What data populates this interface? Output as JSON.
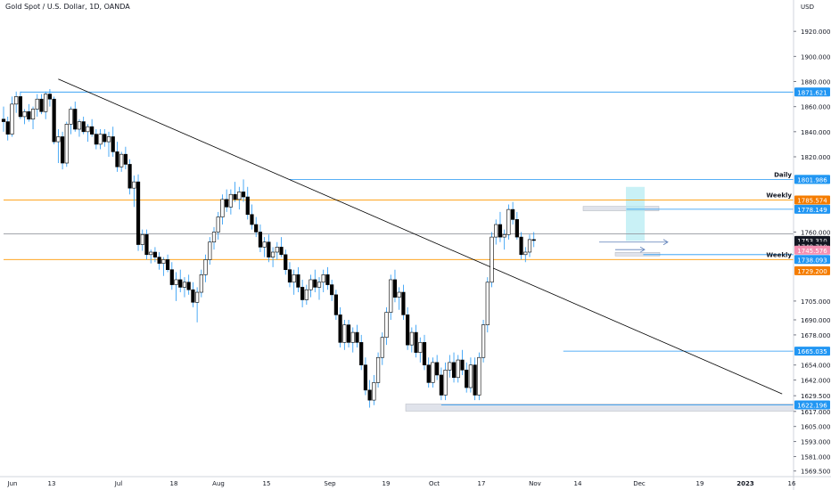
{
  "header": {
    "title": "Gold Spot / U.S. Dollar, 1D, OANDA"
  },
  "colors": {
    "candle_up": "#ffffff",
    "candle_down": "#000000",
    "wick": "#2196f3",
    "blue_level": "#2196f3",
    "orange_level": "#ff9800",
    "trendline": "#000000",
    "grid": "#d1d4dc",
    "price_tag_dark": "#131722",
    "price_tag_teal": "#26c6da",
    "price_tag_orange": "#f57c00",
    "price_tag_pink": "#f48fb1",
    "zone_fill": "#b2ebf2"
  },
  "chart_data": {
    "type": "candlestick",
    "currency": "USD",
    "ylim": [
      1565,
      1945
    ],
    "y_ticks": [
      {
        "value": 1920,
        "label": "1920.000"
      },
      {
        "value": 1900,
        "label": "1900.000"
      },
      {
        "value": 1880,
        "label": "1880.000"
      },
      {
        "value": 1860,
        "label": "1860.000"
      },
      {
        "value": 1840,
        "label": "1840.000"
      },
      {
        "value": 1820,
        "label": "1820.000"
      },
      {
        "value": 1760,
        "label": "1760.000"
      },
      {
        "value": 1705,
        "label": "1705.000"
      },
      {
        "value": 1690,
        "label": "1690.000"
      },
      {
        "value": 1678,
        "label": "1678.000"
      },
      {
        "value": 1654,
        "label": "1654.000"
      },
      {
        "value": 1642,
        "label": "1642.000"
      },
      {
        "value": 1629.5,
        "label": "1629.500"
      },
      {
        "value": 1617,
        "label": "1617.000"
      },
      {
        "value": 1605,
        "label": "1605.000"
      },
      {
        "value": 1593,
        "label": "1593.000"
      },
      {
        "value": 1581,
        "label": "1581.000"
      },
      {
        "value": 1569.5,
        "label": "1569.500"
      }
    ],
    "x_ticks": [
      "Jun",
      "13",
      "Jul",
      "18",
      "Aug",
      "15",
      "Sep",
      "19",
      "Oct",
      "17",
      "Nov",
      "14",
      "Dec",
      "19",
      "2023",
      "16"
    ],
    "bold_x_ticks": [
      "2023"
    ],
    "price_tags": [
      {
        "value": 1871.621,
        "label": "1871.621",
        "style": "blue"
      },
      {
        "value": 1802.001,
        "label": "1802.001",
        "style": "teal"
      },
      {
        "value": 1801.986,
        "label": "1801.986",
        "style": "blue"
      },
      {
        "value": 1785.574,
        "label": "1785.574",
        "style": "orange"
      },
      {
        "value": 1778.149,
        "label": "1778.149",
        "style": "blue"
      },
      {
        "value": 1753.31,
        "label": "1753.310",
        "style": "dark"
      },
      {
        "value": 1748.0,
        "label": "21:31:46",
        "style": "dark_light"
      },
      {
        "value": 1748.71,
        "label": "1748.710",
        "style": "dark"
      },
      {
        "value": 1745.576,
        "label": "1745.576",
        "style": "pink"
      },
      {
        "value": 1738.093,
        "label": "1738.093",
        "style": "blue"
      },
      {
        "value": 1729.2,
        "label": "1729.200",
        "style": "orange"
      },
      {
        "value": 1665.035,
        "label": "1665.035",
        "style": "blue"
      },
      {
        "value": 1622.196,
        "label": "1622.196",
        "style": "blue"
      }
    ],
    "level_labels": [
      {
        "value": 1802,
        "text": "Daily"
      },
      {
        "value": 1785.574,
        "text": "Weekly"
      },
      {
        "value": 1738.093,
        "text": "Weekly"
      }
    ],
    "levels": [
      {
        "value": 1871.621,
        "color": "blue",
        "from_bar": 4
      },
      {
        "value": 1801.986,
        "color": "blue",
        "from_bar": 68
      },
      {
        "value": 1785.574,
        "color": "orange",
        "from_bar": 0
      },
      {
        "value": 1778.149,
        "color": "blue",
        "from_bar": 148
      },
      {
        "value": 1758.5,
        "color": "gray",
        "from_bar": 0
      },
      {
        "value": 1738.093,
        "color": "orange",
        "from_bar": 0
      },
      {
        "value": 1742.0,
        "color": "blue",
        "from_bar": 152
      },
      {
        "value": 1665.035,
        "color": "blue",
        "from_bar": 133
      },
      {
        "value": 1622.196,
        "color": "blue",
        "from_bar": 104
      }
    ],
    "trendline": {
      "from": {
        "bar": 13,
        "price": 1882
      },
      "to": {
        "bar": 185,
        "price": 1631
      }
    },
    "candles": [
      [
        1850,
        1860,
        1840,
        1848
      ],
      [
        1848,
        1852,
        1833,
        1838
      ],
      [
        1838,
        1868,
        1836,
        1862
      ],
      [
        1862,
        1872,
        1855,
        1868
      ],
      [
        1868,
        1872,
        1850,
        1852
      ],
      [
        1852,
        1858,
        1846,
        1856
      ],
      [
        1856,
        1862,
        1848,
        1850
      ],
      [
        1850,
        1860,
        1842,
        1858
      ],
      [
        1858,
        1870,
        1852,
        1866
      ],
      [
        1866,
        1870,
        1854,
        1856
      ],
      [
        1856,
        1872,
        1850,
        1870
      ],
      [
        1870,
        1874,
        1860,
        1866
      ],
      [
        1866,
        1868,
        1830,
        1832
      ],
      [
        1832,
        1842,
        1815,
        1836
      ],
      [
        1836,
        1840,
        1810,
        1815
      ],
      [
        1815,
        1848,
        1812,
        1846
      ],
      [
        1846,
        1860,
        1838,
        1858
      ],
      [
        1858,
        1864,
        1840,
        1842
      ],
      [
        1842,
        1850,
        1836,
        1848
      ],
      [
        1848,
        1852,
        1838,
        1840
      ],
      [
        1840,
        1846,
        1832,
        1844
      ],
      [
        1844,
        1850,
        1836,
        1838
      ],
      [
        1838,
        1842,
        1826,
        1830
      ],
      [
        1830,
        1842,
        1826,
        1838
      ],
      [
        1838,
        1842,
        1828,
        1832
      ],
      [
        1832,
        1840,
        1820,
        1836
      ],
      [
        1836,
        1844,
        1820,
        1824
      ],
      [
        1824,
        1832,
        1808,
        1812
      ],
      [
        1812,
        1824,
        1808,
        1822
      ],
      [
        1822,
        1828,
        1810,
        1814
      ],
      [
        1814,
        1818,
        1790,
        1795
      ],
      [
        1795,
        1805,
        1780,
        1800
      ],
      [
        1800,
        1806,
        1745,
        1750
      ],
      [
        1750,
        1762,
        1745,
        1758
      ],
      [
        1758,
        1762,
        1738,
        1742
      ],
      [
        1742,
        1746,
        1735,
        1744
      ],
      [
        1744,
        1748,
        1736,
        1740
      ],
      [
        1740,
        1744,
        1730,
        1735
      ],
      [
        1735,
        1740,
        1725,
        1738
      ],
      [
        1738,
        1742,
        1728,
        1730
      ],
      [
        1730,
        1736,
        1714,
        1718
      ],
      [
        1718,
        1728,
        1705,
        1722
      ],
      [
        1722,
        1730,
        1712,
        1716
      ],
      [
        1716,
        1724,
        1708,
        1720
      ],
      [
        1720,
        1726,
        1710,
        1714
      ],
      [
        1714,
        1720,
        1700,
        1704
      ],
      [
        1704,
        1716,
        1688,
        1712
      ],
      [
        1712,
        1730,
        1708,
        1726
      ],
      [
        1726,
        1742,
        1720,
        1738
      ],
      [
        1738,
        1756,
        1734,
        1752
      ],
      [
        1752,
        1764,
        1746,
        1760
      ],
      [
        1760,
        1776,
        1754,
        1772
      ],
      [
        1772,
        1790,
        1766,
        1786
      ],
      [
        1786,
        1794,
        1776,
        1780
      ],
      [
        1780,
        1794,
        1774,
        1790
      ],
      [
        1790,
        1800,
        1784,
        1786
      ],
      [
        1786,
        1796,
        1778,
        1792
      ],
      [
        1792,
        1802,
        1784,
        1788
      ],
      [
        1788,
        1796,
        1770,
        1774
      ],
      [
        1774,
        1782,
        1762,
        1766
      ],
      [
        1766,
        1772,
        1756,
        1760
      ],
      [
        1760,
        1766,
        1744,
        1748
      ],
      [
        1748,
        1756,
        1740,
        1752
      ],
      [
        1752,
        1758,
        1736,
        1740
      ],
      [
        1740,
        1748,
        1732,
        1744
      ],
      [
        1744,
        1752,
        1738,
        1748
      ],
      [
        1748,
        1756,
        1740,
        1742
      ],
      [
        1742,
        1746,
        1726,
        1730
      ],
      [
        1730,
        1736,
        1716,
        1720
      ],
      [
        1720,
        1730,
        1710,
        1726
      ],
      [
        1726,
        1732,
        1712,
        1716
      ],
      [
        1716,
        1722,
        1700,
        1706
      ],
      [
        1706,
        1718,
        1702,
        1714
      ],
      [
        1714,
        1726,
        1708,
        1722
      ],
      [
        1722,
        1730,
        1712,
        1716
      ],
      [
        1716,
        1724,
        1706,
        1720
      ],
      [
        1720,
        1730,
        1712,
        1726
      ],
      [
        1726,
        1732,
        1714,
        1718
      ],
      [
        1718,
        1722,
        1705,
        1710
      ],
      [
        1710,
        1714,
        1690,
        1694
      ],
      [
        1694,
        1700,
        1668,
        1672
      ],
      [
        1672,
        1690,
        1666,
        1686
      ],
      [
        1686,
        1690,
        1668,
        1672
      ],
      [
        1672,
        1684,
        1664,
        1680
      ],
      [
        1680,
        1686,
        1668,
        1672
      ],
      [
        1672,
        1678,
        1650,
        1654
      ],
      [
        1654,
        1660,
        1630,
        1634
      ],
      [
        1634,
        1642,
        1620,
        1626
      ],
      [
        1626,
        1646,
        1622,
        1640
      ],
      [
        1640,
        1664,
        1636,
        1660
      ],
      [
        1660,
        1680,
        1654,
        1676
      ],
      [
        1676,
        1700,
        1670,
        1696
      ],
      [
        1696,
        1726,
        1690,
        1722
      ],
      [
        1722,
        1730,
        1704,
        1708
      ],
      [
        1708,
        1716,
        1698,
        1712
      ],
      [
        1712,
        1718,
        1690,
        1694
      ],
      [
        1694,
        1700,
        1666,
        1670
      ],
      [
        1670,
        1684,
        1664,
        1680
      ],
      [
        1680,
        1686,
        1660,
        1664
      ],
      [
        1664,
        1676,
        1656,
        1672
      ],
      [
        1672,
        1678,
        1650,
        1654
      ],
      [
        1654,
        1660,
        1636,
        1640
      ],
      [
        1640,
        1660,
        1636,
        1656
      ],
      [
        1656,
        1662,
        1642,
        1646
      ],
      [
        1646,
        1652,
        1626,
        1630
      ],
      [
        1630,
        1656,
        1626,
        1650
      ],
      [
        1650,
        1662,
        1644,
        1656
      ],
      [
        1656,
        1664,
        1640,
        1644
      ],
      [
        1644,
        1662,
        1640,
        1658
      ],
      [
        1658,
        1666,
        1646,
        1650
      ],
      [
        1650,
        1656,
        1632,
        1636
      ],
      [
        1636,
        1660,
        1632,
        1654
      ],
      [
        1654,
        1660,
        1626,
        1630
      ],
      [
        1630,
        1664,
        1626,
        1660
      ],
      [
        1660,
        1690,
        1656,
        1686
      ],
      [
        1686,
        1724,
        1680,
        1720
      ],
      [
        1720,
        1760,
        1716,
        1756
      ],
      [
        1756,
        1770,
        1750,
        1766
      ],
      [
        1766,
        1776,
        1752,
        1756
      ],
      [
        1756,
        1762,
        1746,
        1758
      ],
      [
        1758,
        1782,
        1754,
        1778
      ],
      [
        1778,
        1784,
        1766,
        1770
      ],
      [
        1770,
        1776,
        1754,
        1756
      ],
      [
        1756,
        1760,
        1738,
        1742
      ],
      [
        1742,
        1748,
        1736,
        1744
      ],
      [
        1744,
        1758,
        1740,
        1754
      ],
      [
        1754,
        1760,
        1748,
        1753.31
      ]
    ]
  }
}
